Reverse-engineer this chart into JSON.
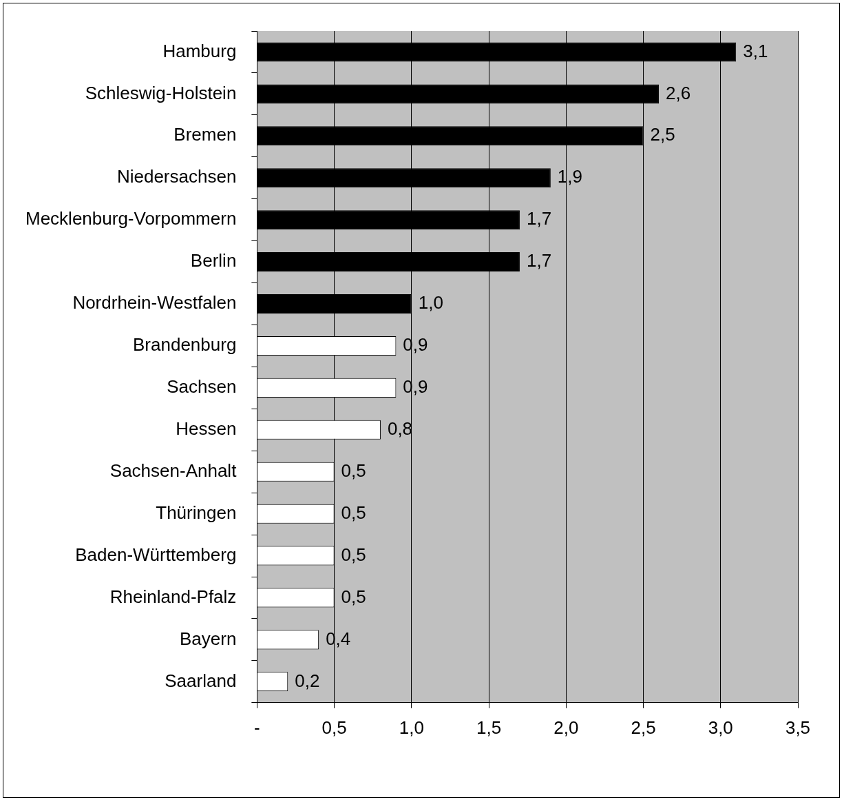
{
  "chart_data": {
    "type": "bar",
    "orientation": "horizontal",
    "categories": [
      "Hamburg",
      "Schleswig-Holstein",
      "Bremen",
      "Niedersachsen",
      "Mecklenburg-Vorpommern",
      "Berlin",
      "Nordrhein-Westfalen",
      "Brandenburg",
      "Sachsen",
      "Hessen",
      "Sachsen-Anhalt",
      "Thüringen",
      "Baden-Württemberg",
      "Rheinland-Pfalz",
      "Bayern",
      "Saarland"
    ],
    "values": [
      3.1,
      2.6,
      2.5,
      1.9,
      1.7,
      1.7,
      1.0,
      0.9,
      0.9,
      0.8,
      0.5,
      0.5,
      0.5,
      0.5,
      0.4,
      0.2
    ],
    "value_labels": [
      "3,1",
      "2,6",
      "2,5",
      "1,9",
      "1,7",
      "1,7",
      "1,0",
      "0,9",
      "0,9",
      "0,8",
      "0,5",
      "0,5",
      "0,5",
      "0,5",
      "0,4",
      "0,2"
    ],
    "colors": [
      "#000000",
      "#000000",
      "#000000",
      "#000000",
      "#000000",
      "#000000",
      "#000000",
      "#ffffff",
      "#ffffff",
      "#ffffff",
      "#ffffff",
      "#ffffff",
      "#ffffff",
      "#ffffff",
      "#ffffff",
      "#ffffff"
    ],
    "xlim": [
      0,
      3.5
    ],
    "xticks": [
      {
        "value": 0,
        "label": "-"
      },
      {
        "value": 0.5,
        "label": "0,5"
      },
      {
        "value": 1,
        "label": "1,0"
      },
      {
        "value": 1.5,
        "label": "1,5"
      },
      {
        "value": 2,
        "label": "2,0"
      },
      {
        "value": 2.5,
        "label": "2,5"
      },
      {
        "value": 3,
        "label": "3,0"
      },
      {
        "value": 3.5,
        "label": "3,5"
      }
    ],
    "grid": "x",
    "legend": false
  }
}
